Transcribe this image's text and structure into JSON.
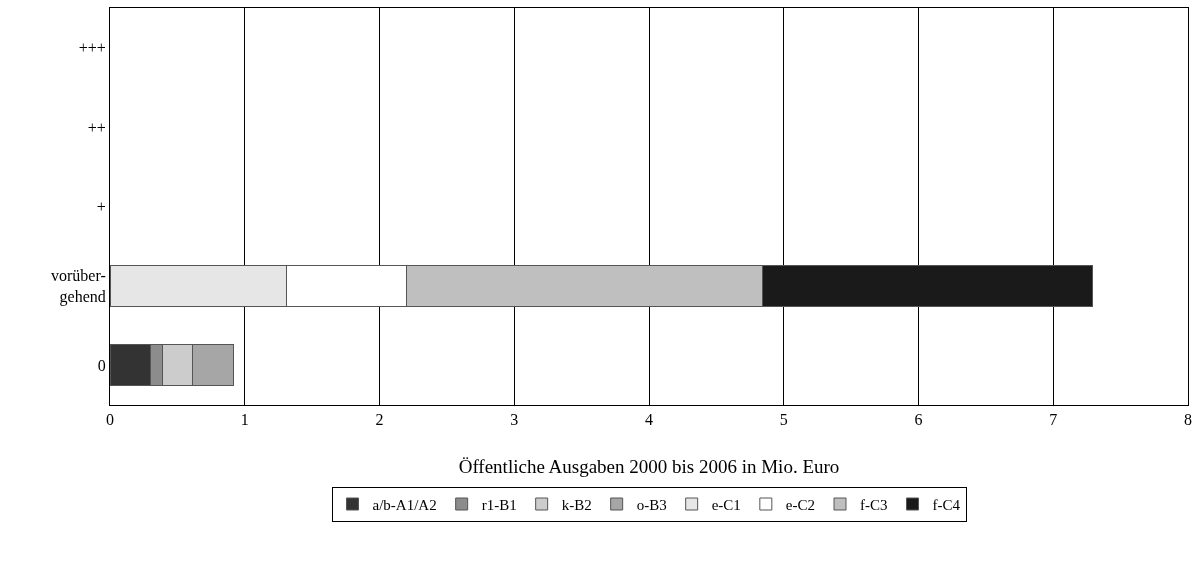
{
  "chart_data": {
    "type": "bar",
    "orientation": "horizontal",
    "stacked": true,
    "xlabel": "Öffentliche Ausgaben 2000 bis 2006 in Mio. Euro",
    "categories": [
      "+++",
      "++",
      "+",
      "vorüber-\ngehend",
      "0"
    ],
    "series": [
      {
        "name": "a/b-A1/A2",
        "color": "#333333",
        "values": [
          null,
          null,
          null,
          null,
          0.3
        ]
      },
      {
        "name": "r1-B1",
        "color": "#8c8c8c",
        "values": [
          null,
          null,
          null,
          null,
          0.09
        ]
      },
      {
        "name": "k-B2",
        "color": "#cccccc",
        "values": [
          null,
          null,
          null,
          null,
          0.22
        ]
      },
      {
        "name": "o-B3",
        "color": "#a6a6a6",
        "values": [
          null,
          null,
          null,
          null,
          0.31
        ]
      },
      {
        "name": "e-C1",
        "color": "#e6e6e6",
        "values": [
          null,
          null,
          null,
          1.31,
          null
        ]
      },
      {
        "name": "e-C2",
        "color": "#ffffff",
        "values": [
          null,
          null,
          null,
          0.89,
          null
        ]
      },
      {
        "name": "f-C3",
        "color": "#bfbfbf",
        "values": [
          null,
          null,
          null,
          2.64,
          null
        ]
      },
      {
        "name": "f-C4",
        "color": "#1a1a1a",
        "values": [
          null,
          null,
          null,
          2.45,
          null
        ]
      }
    ],
    "xlim": [
      0,
      8
    ],
    "xticks": [
      0,
      1,
      2,
      3,
      4,
      5,
      6,
      7,
      8
    ],
    "grid": "x",
    "legend": "bottom"
  }
}
